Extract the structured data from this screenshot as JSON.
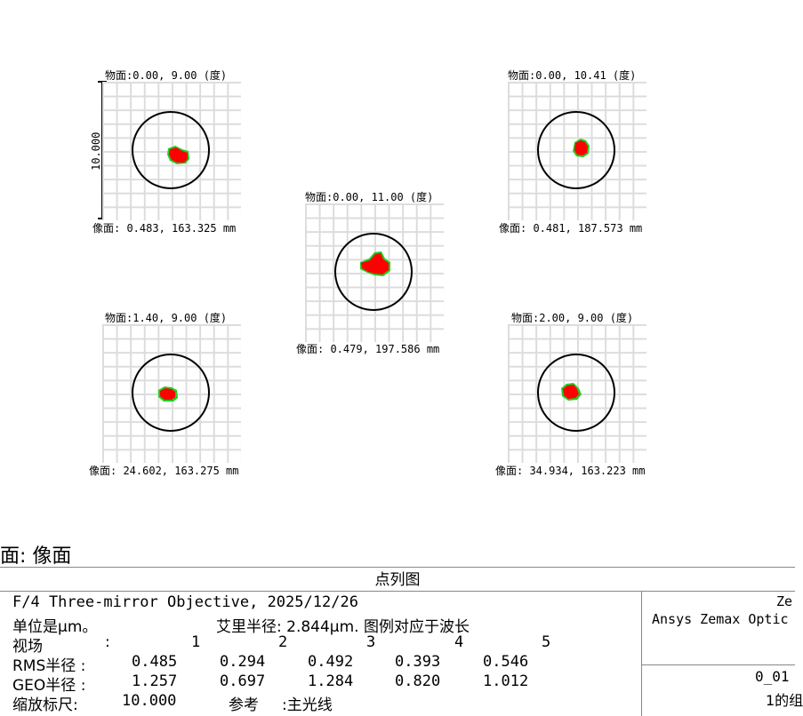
{
  "plots": [
    {
      "id": "f1",
      "field": "物面:0.00, 9.00 (度)",
      "image": "像面: 0.483, 163.325 mm"
    },
    {
      "id": "f2",
      "field": "物面:0.00, 10.41 (度)",
      "image": "像面: 0.481, 187.573 mm"
    },
    {
      "id": "f3",
      "field": "物面:0.00, 11.00 (度)",
      "image": "像面: 0.479, 197.586 mm"
    },
    {
      "id": "f4",
      "field": "物面:1.40, 9.00 (度)",
      "image": "像面: 24.602, 163.275 mm"
    },
    {
      "id": "f5",
      "field": "物面:2.00, 9.00 (度)",
      "image": "像面: 34.934, 163.223 mm"
    }
  ],
  "scale_label": "10.000",
  "surface_label": "面: 像面",
  "info": {
    "title": "点列图",
    "system": "F/4 Three-mirror Objective, 2025/12/26",
    "unit_prefix": "单位是μm。",
    "airy": "艾里半径: 2.844μm. 图例对应于波长",
    "field_row_label": "视场",
    "field_numbers": [
      "1",
      "2",
      "3",
      "4",
      "5"
    ],
    "rms_label": "RMS半径 :",
    "rms": [
      "0.485",
      "0.294",
      "0.492",
      "0.393",
      "0.546"
    ],
    "geo_label": "GEO半径 :",
    "geo": [
      "1.257",
      "0.697",
      "1.284",
      "0.820",
      "1.012"
    ],
    "scale_row_label": "缩放标尺:",
    "scale_value": "10.000",
    "ref_label": "参考",
    "ref_value": ":主光线",
    "company_short": "Ze",
    "company_long": "Ansys Zemax Optic",
    "file_id": "0_01",
    "config": "1的组"
  },
  "colors": {
    "spot_red": "#ff0000",
    "spot_green": "#22cc22",
    "grid": "#dcdcdc"
  }
}
